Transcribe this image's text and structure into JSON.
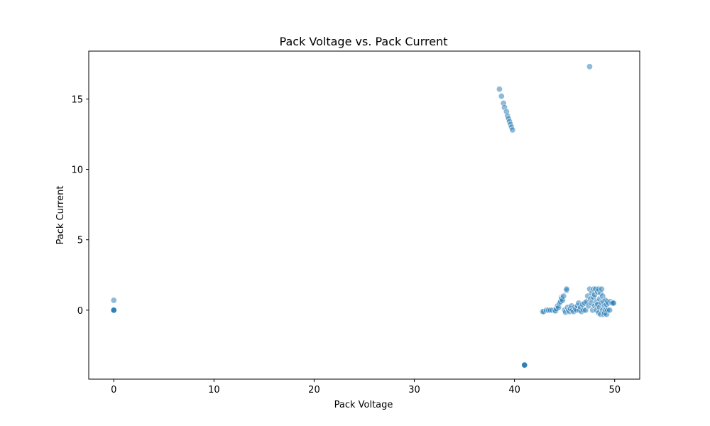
{
  "chart_data": {
    "type": "scatter",
    "title": "Pack Voltage vs. Pack Current",
    "xlabel": "Pack Voltage",
    "ylabel": "Pack Current",
    "xlim": [
      -2.5,
      52.5
    ],
    "ylim": [
      -4.9,
      18.4
    ],
    "xticks": [
      0,
      10,
      20,
      30,
      40,
      50
    ],
    "yticks": [
      0,
      5,
      10,
      15
    ],
    "grid": false,
    "color": "#1f77b4",
    "alpha": 0.5,
    "series": [
      {
        "points": [
          [
            0,
            0.7
          ],
          [
            0,
            0
          ],
          [
            0,
            0
          ],
          [
            0,
            0
          ],
          [
            0,
            0
          ],
          [
            41,
            -3.9
          ],
          [
            41,
            -3.9
          ],
          [
            41,
            -3.9
          ],
          [
            41,
            -3.9
          ],
          [
            47.5,
            17.3
          ],
          [
            38.5,
            15.7
          ],
          [
            38.7,
            15.2
          ],
          [
            38.9,
            14.7
          ],
          [
            39.0,
            14.4
          ],
          [
            39.2,
            14.1
          ],
          [
            39.3,
            13.8
          ],
          [
            39.4,
            13.6
          ],
          [
            39.5,
            13.4
          ],
          [
            39.6,
            13.2
          ],
          [
            39.7,
            13.0
          ],
          [
            39.8,
            12.8
          ],
          [
            42.8,
            -0.1
          ],
          [
            42.9,
            -0.1
          ],
          [
            43.2,
            0
          ],
          [
            43.4,
            0
          ],
          [
            43.6,
            0
          ],
          [
            43.8,
            0
          ],
          [
            44.0,
            0
          ],
          [
            44.1,
            -0.05
          ],
          [
            44.2,
            0.1
          ],
          [
            44.3,
            0.3
          ],
          [
            44.4,
            0.2
          ],
          [
            44.5,
            0.5
          ],
          [
            44.6,
            0.6
          ],
          [
            44.7,
            0.9
          ],
          [
            44.7,
            0.8
          ],
          [
            44.8,
            0.7
          ],
          [
            44.9,
            1.0
          ],
          [
            45.0,
            0
          ],
          [
            45.1,
            -0.15
          ],
          [
            45.2,
            1.4
          ],
          [
            45.2,
            1.5
          ],
          [
            45.3,
            0.2
          ],
          [
            45.4,
            0
          ],
          [
            45.5,
            -0.1
          ],
          [
            45.6,
            0.1
          ],
          [
            45.7,
            0.3
          ],
          [
            45.8,
            0
          ],
          [
            45.9,
            -0.1
          ],
          [
            46.0,
            0.2
          ],
          [
            46.1,
            0.1
          ],
          [
            46.2,
            0
          ],
          [
            46.3,
            0.3
          ],
          [
            46.4,
            0.5
          ],
          [
            46.5,
            0
          ],
          [
            46.6,
            0.2
          ],
          [
            46.7,
            -0.1
          ],
          [
            46.8,
            0.4
          ],
          [
            46.9,
            0
          ],
          [
            47.0,
            0.5
          ],
          [
            47.1,
            0
          ],
          [
            47.2,
            0.6
          ],
          [
            47.3,
            1.0
          ],
          [
            47.4,
            0.3
          ],
          [
            47.5,
            1.5
          ],
          [
            47.6,
            0.8
          ],
          [
            47.7,
            1.2
          ],
          [
            47.7,
            0.5
          ],
          [
            47.8,
            0
          ],
          [
            47.9,
            1.5
          ],
          [
            47.9,
            0.9
          ],
          [
            48.0,
            0.3
          ],
          [
            48.0,
            1.1
          ],
          [
            48.1,
            1.5
          ],
          [
            48.2,
            0.6
          ],
          [
            48.2,
            0
          ],
          [
            48.3,
            1.3
          ],
          [
            48.3,
            0.4
          ],
          [
            48.4,
            1.5
          ],
          [
            48.4,
            -0.2
          ],
          [
            48.5,
            0.8
          ],
          [
            48.5,
            0.2
          ],
          [
            48.6,
            1.2
          ],
          [
            48.6,
            -0.3
          ],
          [
            48.7,
            1.5
          ],
          [
            48.7,
            0.5
          ],
          [
            48.8,
            0
          ],
          [
            48.8,
            1.0
          ],
          [
            48.9,
            -0.3
          ],
          [
            48.9,
            0.6
          ],
          [
            49.0,
            0.3
          ],
          [
            49.0,
            -0.2
          ],
          [
            49.1,
            0.7
          ],
          [
            49.1,
            0
          ],
          [
            49.2,
            0.4
          ],
          [
            49.2,
            -0.3
          ],
          [
            49.3,
            0.6
          ],
          [
            49.3,
            0
          ],
          [
            49.4,
            0.5
          ],
          [
            49.5,
            0
          ],
          [
            49.6,
            0.6
          ],
          [
            49.7,
            0.5
          ],
          [
            49.8,
            0.5
          ],
          [
            49.9,
            0.5
          ]
        ]
      }
    ]
  }
}
